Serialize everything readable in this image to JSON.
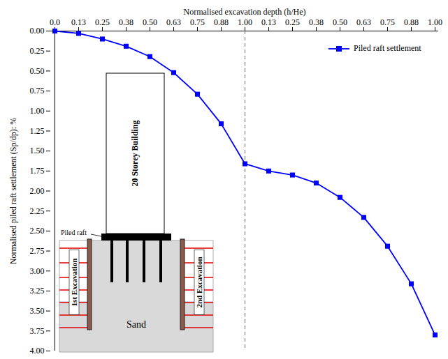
{
  "chart_data": {
    "type": "line",
    "x_label": "Normalised excavation depth (h/He)",
    "y_label": "Normalised piled raft settlement (Sp/dp): %",
    "categories": [
      "0.0",
      "0.13",
      "0.25",
      "0.38",
      "0.50",
      "0.63",
      "0.75",
      "0.88",
      "1.00",
      "0.13",
      "0.25",
      "0.38",
      "0.50",
      "0.63",
      "0.75",
      "0.88",
      "1.00"
    ],
    "series": [
      {
        "name": "Piled raft settlement",
        "color": "#0000ff",
        "marker": "square",
        "line_style": "solid",
        "values": [
          0.0,
          0.03,
          0.1,
          0.19,
          0.32,
          0.52,
          0.79,
          1.16,
          1.66,
          1.75,
          1.8,
          1.9,
          2.08,
          2.33,
          2.69,
          3.16,
          3.8
        ]
      }
    ],
    "ylim": [
      4,
      0
    ],
    "yticks": [
      {
        "value": 0,
        "label": "0.00"
      },
      {
        "value": 0.25,
        "label": "0.25"
      },
      {
        "value": 0.5,
        "label": "0.50"
      },
      {
        "value": 0.75,
        "label": "0.75"
      },
      {
        "value": 1,
        "label": "1.00"
      },
      {
        "value": 1.25,
        "label": "1.25"
      },
      {
        "value": 1.5,
        "label": "1.50"
      },
      {
        "value": 1.75,
        "label": "1.75"
      },
      {
        "value": 2,
        "label": "2.00"
      },
      {
        "value": 2.25,
        "label": "2.25"
      },
      {
        "value": 2.5,
        "label": "2.50"
      },
      {
        "value": 2.75,
        "label": "2.75"
      },
      {
        "value": 3,
        "label": "3.00"
      },
      {
        "value": 3.25,
        "label": "3.25"
      },
      {
        "value": 3.5,
        "label": "3.50"
      },
      {
        "value": 3.75,
        "label": "3.75"
      },
      {
        "value": 4,
        "label": "4.00"
      }
    ],
    "grid": false,
    "legend": "top-right",
    "annotations": [
      "20 Storey Building",
      "Piled raft",
      "1st Excavation",
      "2nd Excavation",
      "Sand"
    ]
  }
}
